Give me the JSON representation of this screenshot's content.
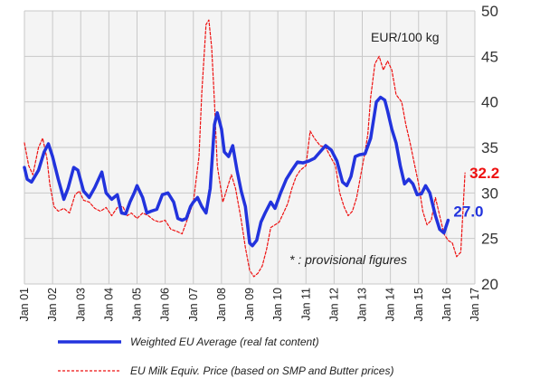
{
  "chart_data": {
    "type": "line",
    "title": "",
    "unit_label": "EUR/100 kg",
    "annotation": "* : provisional figures",
    "xlabel": "",
    "ylabel": "",
    "ylim": [
      20,
      50
    ],
    "yticks": [
      20,
      25,
      30,
      35,
      40,
      45,
      50
    ],
    "y_axis_side": "right",
    "xlim": [
      2001.0,
      2017.0
    ],
    "xtick_labels": [
      "Jan 01",
      "Jan 02",
      "Jan 03",
      "Jan 04",
      "Jan 05",
      "Jan 06",
      "Jan 07",
      "Jan 08",
      "Jan 09",
      "Jan 10",
      "Jan 11",
      "Jan 12",
      "Jan 13",
      "Jan 14",
      "Jan 15",
      "Jan 16",
      "Jan 17"
    ],
    "grid": true,
    "legend_position": "bottom",
    "series": [
      {
        "name": "Weighted EU Average (real fat content)",
        "color": "#2233dd",
        "style": "solid",
        "last_value_label": "27.0",
        "x": [
          2001.0,
          2001.1,
          2001.25,
          2001.5,
          2001.7,
          2001.85,
          2002.0,
          2002.2,
          2002.4,
          2002.55,
          2002.75,
          2002.9,
          2003.1,
          2003.3,
          2003.5,
          2003.75,
          2003.9,
          2004.1,
          2004.3,
          2004.45,
          2004.6,
          2004.75,
          2004.9,
          2005.0,
          2005.2,
          2005.35,
          2005.5,
          2005.7,
          2005.9,
          2006.1,
          2006.3,
          2006.45,
          2006.6,
          2006.75,
          2006.9,
          2007.0,
          2007.15,
          2007.3,
          2007.45,
          2007.6,
          2007.75,
          2007.85,
          2008.0,
          2008.1,
          2008.25,
          2008.4,
          2008.55,
          2008.7,
          2008.85,
          2009.0,
          2009.1,
          2009.25,
          2009.4,
          2009.55,
          2009.75,
          2009.9,
          2010.1,
          2010.3,
          2010.5,
          2010.7,
          2010.9,
          2011.1,
          2011.3,
          2011.5,
          2011.7,
          2011.9,
          2012.1,
          2012.3,
          2012.45,
          2012.6,
          2012.75,
          2012.9,
          2013.1,
          2013.3,
          2013.5,
          2013.65,
          2013.8,
          2013.9,
          2014.05,
          2014.2,
          2014.35,
          2014.5,
          2014.65,
          2014.8,
          2014.95,
          2015.1,
          2015.25,
          2015.4,
          2015.6,
          2015.75,
          2015.9,
          2016.05,
          2016.2,
          2016.35,
          2016.5,
          2016.65
        ],
        "y": [
          32.8,
          31.5,
          31.2,
          32.5,
          34.5,
          35.4,
          34.0,
          31.5,
          29.3,
          30.5,
          32.8,
          32.5,
          30.2,
          29.5,
          30.6,
          32.3,
          30.0,
          29.3,
          29.8,
          27.8,
          27.7,
          29.0,
          30.0,
          30.8,
          29.5,
          27.8,
          28.0,
          28.2,
          29.8,
          30.0,
          29.0,
          27.2,
          27.0,
          27.2,
          28.5,
          29.0,
          29.5,
          28.5,
          27.8,
          30.5,
          37.5,
          38.8,
          37.0,
          34.5,
          34.0,
          35.2,
          32.5,
          30.2,
          28.5,
          24.5,
          24.2,
          24.8,
          26.8,
          27.8,
          29.0,
          28.3,
          30.0,
          31.5,
          32.5,
          33.4,
          33.3,
          33.5,
          33.8,
          34.5,
          35.2,
          34.7,
          33.5,
          31.2,
          30.8,
          31.8,
          34.0,
          34.2,
          34.3,
          36.0,
          40.0,
          40.5,
          40.2,
          39.0,
          37.0,
          35.5,
          33.0,
          31.0,
          31.5,
          31.0,
          29.8,
          29.9,
          30.8,
          30.0,
          27.5,
          26.0,
          25.6,
          27.0,
          null,
          null,
          null,
          null
        ]
      },
      {
        "name": "EU Milk Equiv. Price (based on SMP and Butter prices)",
        "color": "#ee1111",
        "style": "dashed",
        "last_value_label": "32.2",
        "x": [
          2001.0,
          2001.15,
          2001.3,
          2001.5,
          2001.65,
          2001.8,
          2001.9,
          2002.05,
          2002.2,
          2002.4,
          2002.6,
          2002.8,
          2002.95,
          2003.1,
          2003.3,
          2003.5,
          2003.7,
          2003.9,
          2004.1,
          2004.3,
          2004.5,
          2004.65,
          2004.8,
          2005.0,
          2005.2,
          2005.4,
          2005.6,
          2005.8,
          2006.0,
          2006.2,
          2006.4,
          2006.6,
          2006.8,
          2007.0,
          2007.1,
          2007.2,
          2007.3,
          2007.45,
          2007.55,
          2007.65,
          2007.75,
          2007.85,
          2007.95,
          2008.05,
          2008.2,
          2008.35,
          2008.5,
          2008.7,
          2008.85,
          2009.0,
          2009.15,
          2009.3,
          2009.45,
          2009.6,
          2009.75,
          2009.9,
          2010.05,
          2010.2,
          2010.35,
          2010.5,
          2010.65,
          2010.8,
          2011.0,
          2011.15,
          2011.3,
          2011.5,
          2011.7,
          2011.9,
          2012.05,
          2012.2,
          2012.35,
          2012.5,
          2012.65,
          2012.8,
          2012.95,
          2013.1,
          2013.2,
          2013.3,
          2013.45,
          2013.6,
          2013.75,
          2013.9,
          2014.05,
          2014.2,
          2014.4,
          2014.55,
          2014.7,
          2014.85,
          2015.0,
          2015.15,
          2015.3,
          2015.45,
          2015.6,
          2015.75,
          2015.9,
          2016.05,
          2016.2,
          2016.35,
          2016.5,
          2016.65
        ],
        "y": [
          35.5,
          33.0,
          32.0,
          35.0,
          36.0,
          33.8,
          31.0,
          28.5,
          28.0,
          28.3,
          27.8,
          29.8,
          30.2,
          29.2,
          29.0,
          28.3,
          28.0,
          28.4,
          27.5,
          28.4,
          28.5,
          27.5,
          27.8,
          27.2,
          27.8,
          27.5,
          27.0,
          26.8,
          27.0,
          26.0,
          25.8,
          25.5,
          27.2,
          29.0,
          31.5,
          34.0,
          41.0,
          48.5,
          49.0,
          46.0,
          40.0,
          33.0,
          31.0,
          29.0,
          30.5,
          32.0,
          30.5,
          27.0,
          24.0,
          21.5,
          20.8,
          21.2,
          22.0,
          23.8,
          26.2,
          26.5,
          26.8,
          27.8,
          28.8,
          30.5,
          31.8,
          32.5,
          33.0,
          36.8,
          36.0,
          35.2,
          35.0,
          33.8,
          33.0,
          30.0,
          28.5,
          27.5,
          28.0,
          29.5,
          32.0,
          34.5,
          36.5,
          40.5,
          44.2,
          45.0,
          43.5,
          44.5,
          43.5,
          40.8,
          40.0,
          37.5,
          35.5,
          33.2,
          31.0,
          28.0,
          26.5,
          27.0,
          29.5,
          27.5,
          25.5,
          24.8,
          24.5,
          23.0,
          23.5,
          32.2
        ]
      }
    ]
  }
}
